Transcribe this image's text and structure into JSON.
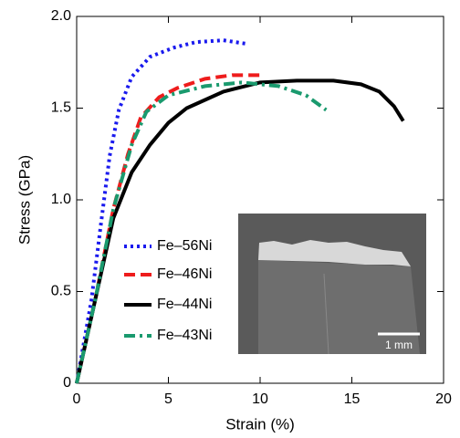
{
  "chart_data": {
    "type": "line",
    "x_label": "Strain (%)",
    "y_label": "Stress (GPa)",
    "xlim": [
      0,
      20
    ],
    "xticks": [
      0,
      5,
      10,
      15,
      20
    ],
    "ylim": [
      0,
      2
    ],
    "yticks": [
      0,
      0.5,
      {
        "value": 1,
        "label": "1.0"
      },
      1.5,
      {
        "value": 2,
        "label": "2.0"
      }
    ],
    "legend": "left",
    "series": [
      {
        "name": "Fe–56Ni",
        "color": "#1a1aee",
        "style": "dotted",
        "x": [
          0,
          0.8,
          1.3,
          1.8,
          2.3,
          3,
          4,
          5.3,
          6.5,
          8,
          9.3
        ],
        "values": [
          0,
          0.45,
          0.85,
          1.24,
          1.49,
          1.67,
          1.78,
          1.83,
          1.86,
          1.87,
          1.85
        ]
      },
      {
        "name": "Fe–46Ni",
        "color": "#ee1c1c",
        "style": "dashed",
        "x": [
          0,
          1,
          2,
          2.8,
          3.5,
          4.5,
          5.5,
          7,
          8.5,
          10
        ],
        "values": [
          0,
          0.45,
          0.95,
          1.25,
          1.45,
          1.56,
          1.61,
          1.66,
          1.68,
          1.68
        ]
      },
      {
        "name": "Fe–44Ni",
        "color": "#000000",
        "style": "solid",
        "x": [
          0,
          1,
          2,
          3,
          4,
          5,
          6,
          8,
          10,
          12,
          14,
          15.5,
          16.5,
          17.3,
          17.8
        ],
        "values": [
          0,
          0.45,
          0.9,
          1.15,
          1.3,
          1.42,
          1.5,
          1.59,
          1.64,
          1.65,
          1.65,
          1.63,
          1.59,
          1.51,
          1.43
        ]
      },
      {
        "name": "Fe–43Ni",
        "color": "#1a9a6e",
        "style": "dashdot",
        "x": [
          0,
          1,
          2,
          3,
          3.8,
          5,
          7,
          9,
          11,
          12.5,
          13.6
        ],
        "values": [
          0,
          0.45,
          0.95,
          1.3,
          1.48,
          1.57,
          1.62,
          1.64,
          1.62,
          1.57,
          1.49
        ]
      }
    ],
    "annotations": [
      "1 mm"
    ]
  }
}
